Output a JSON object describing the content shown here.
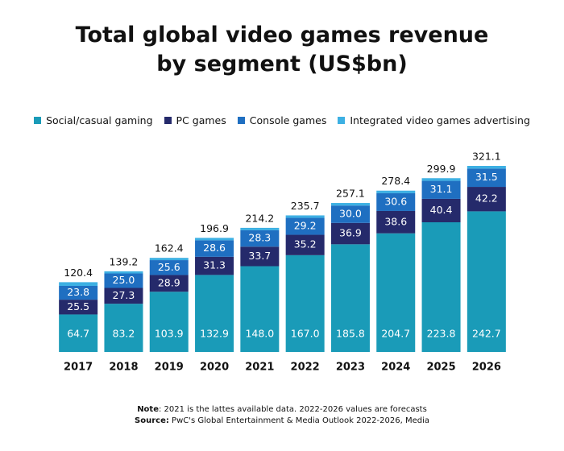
{
  "chart_data": {
    "type": "stacked-bar",
    "title": [
      "Total global video games revenue",
      "by segment (US$bn)"
    ],
    "categories": [
      "2017",
      "2018",
      "2019",
      "2020",
      "2021",
      "2022",
      "2023",
      "2024",
      "2025",
      "2026"
    ],
    "series": [
      {
        "name": "Social/casual gaming",
        "color": "#1a9bb8",
        "values": [
          64.7,
          83.2,
          103.9,
          132.9,
          148.0,
          167.0,
          185.8,
          204.7,
          223.8,
          242.7
        ],
        "value_labels": [
          "64.7",
          "83.2",
          "103.9",
          "132.9",
          "148.0",
          "167.0",
          "185.8",
          "204.7",
          "223.8",
          "242.7"
        ]
      },
      {
        "name": "PC games",
        "color": "#252a6b",
        "values": [
          25.5,
          27.3,
          28.9,
          31.3,
          33.7,
          35.2,
          36.9,
          38.6,
          40.4,
          42.2
        ],
        "value_labels": [
          "25.5",
          "27.3",
          "28.9",
          "31.3",
          "33.7",
          "35.2",
          "36.9",
          "38.6",
          "40.4",
          "42.2"
        ]
      },
      {
        "name": "Console games",
        "color": "#1f6fc1",
        "values": [
          23.8,
          25.0,
          25.6,
          28.6,
          28.3,
          29.2,
          30.0,
          30.6,
          31.1,
          31.5
        ],
        "value_labels": [
          "23.8",
          "25.0",
          "25.6",
          "28.6",
          "28.3",
          "29.2",
          "30.0",
          "30.6",
          "31.1",
          "31.5"
        ]
      },
      {
        "name": "Integrated video games advertising",
        "color": "#3db0e3",
        "values": [
          6.4,
          3.7,
          4.0,
          4.1,
          4.2,
          4.3,
          4.4,
          4.5,
          4.6,
          4.7
        ]
      }
    ],
    "totals": [
      120.4,
      139.2,
      162.4,
      196.9,
      214.2,
      235.7,
      257.1,
      278.4,
      299.9,
      321.1
    ],
    "notes": [
      {
        "label": "Note",
        "text": ": 2021 is the lattes available data. 2022-2026 values are forecasts"
      },
      {
        "label": "Source:",
        "text": " PwC's Global Entertainment & Media Outlook 2022-2026, Media"
      }
    ]
  }
}
